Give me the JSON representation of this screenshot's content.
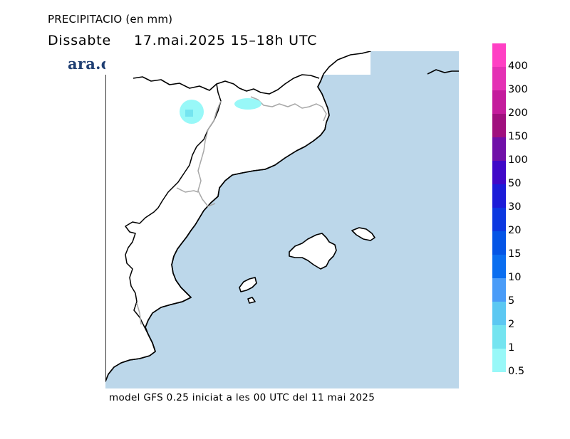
{
  "title": {
    "variable": "PRECIPITACIO (en mm)",
    "day": "Dissabte",
    "datetime": "17.mai.2025 15–18h UTC"
  },
  "logo": "ara.cat",
  "footer": "model GFS 0.25 iniciat a les 00 UTC del 11 mai 2025",
  "colors": {
    "sea": "#bcd7ea",
    "land": "#ffffff",
    "coast": "#000000",
    "border": "#a8a8a8"
  },
  "legend": {
    "items": [
      {
        "label": "400",
        "color": "#ff40c4"
      },
      {
        "label": "300",
        "color": "#e431b4"
      },
      {
        "label": "200",
        "color": "#c41c9c"
      },
      {
        "label": "150",
        "color": "#a0107e"
      },
      {
        "label": "100",
        "color": "#7010a8"
      },
      {
        "label": "50",
        "color": "#4008c8"
      },
      {
        "label": "30",
        "color": "#1c1cd8"
      },
      {
        "label": "20",
        "color": "#0c38e0"
      },
      {
        "label": "15",
        "color": "#0455e6"
      },
      {
        "label": "10",
        "color": "#0a6ef0"
      },
      {
        "label": "5",
        "color": "#4a9cf8"
      },
      {
        "label": "2",
        "color": "#5cc8f2"
      },
      {
        "label": "1",
        "color": "#74e4f0"
      },
      {
        "label": "0.5",
        "color": "#98f8f8"
      }
    ]
  },
  "precip_areas": [
    {
      "name": "pyrenees-west",
      "level": "0.5",
      "color": "#98f8f8"
    },
    {
      "name": "pyrenees-west-core",
      "level": "1",
      "color": "#74e4f0"
    },
    {
      "name": "pyrenees-central",
      "level": "0.5",
      "color": "#98f8f8"
    }
  ]
}
